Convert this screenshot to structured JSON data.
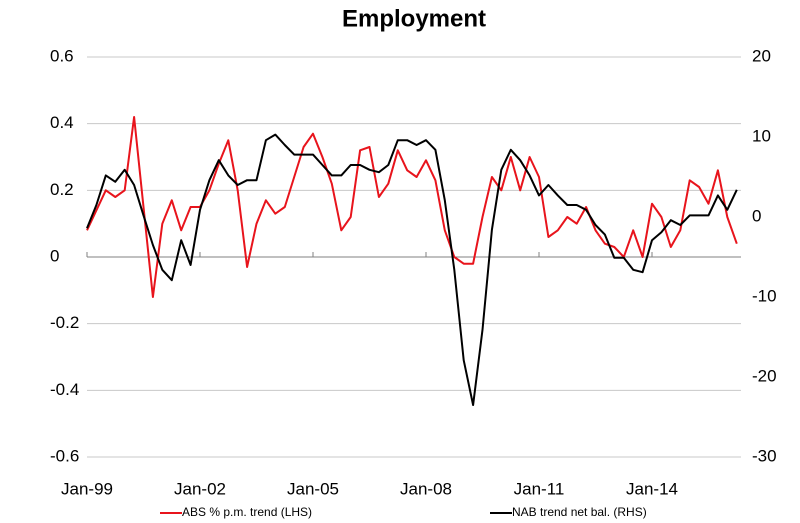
{
  "chart_data": {
    "type": "line",
    "title": "Employment",
    "categories": [
      "Jan-99",
      null,
      null,
      null,
      null,
      null,
      null,
      null,
      null,
      null,
      null,
      null,
      "Jan-02",
      null,
      null,
      null,
      null,
      null,
      null,
      null,
      null,
      null,
      null,
      null,
      "Jan-05",
      null,
      null,
      null,
      null,
      null,
      null,
      null,
      null,
      null,
      null,
      null,
      "Jan-08",
      null,
      null,
      null,
      null,
      null,
      null,
      null,
      null,
      null,
      null,
      null,
      "Jan-11",
      null,
      null,
      null,
      null,
      null,
      null,
      null,
      null,
      null,
      null,
      null,
      "Jan-14",
      null,
      null,
      null,
      null,
      null,
      null,
      null,
      null,
      null
    ],
    "series": [
      {
        "name": "ABS % p.m. trend (LHS)",
        "color": "#e8141c",
        "axis": "y",
        "values": [
          0.08,
          0.14,
          0.2,
          0.18,
          0.2,
          0.42,
          0.15,
          -0.12,
          0.1,
          0.17,
          0.08,
          0.15,
          0.15,
          0.2,
          0.28,
          0.35,
          0.2,
          -0.03,
          0.1,
          0.17,
          0.13,
          0.15,
          0.24,
          0.33,
          0.37,
          0.3,
          0.22,
          0.08,
          0.12,
          0.32,
          0.33,
          0.18,
          0.22,
          0.32,
          0.26,
          0.24,
          0.29,
          0.23,
          0.08,
          0.0,
          -0.02,
          -0.02,
          0.12,
          0.24,
          0.2,
          0.3,
          0.2,
          0.3,
          0.24,
          0.06,
          0.08,
          0.12,
          0.1,
          0.15,
          0.08,
          0.04,
          0.03,
          0.0,
          0.08,
          0.0,
          0.16,
          0.12,
          0.03,
          0.08,
          0.23,
          0.21,
          0.16,
          0.26,
          0.12,
          0.04
        ]
      },
      {
        "name": "NAB trend net bal. (RHS)",
        "color": "#000000",
        "axis": "y2",
        "values": [
          -1.4,
          1.5,
          5.2,
          4.4,
          5.9,
          4,
          0.2,
          -3.5,
          -6.6,
          -7.9,
          -2.9,
          -6,
          0.9,
          4.6,
          7.1,
          5.2,
          4,
          4.6,
          4.6,
          9.6,
          10.3,
          9,
          7.8,
          7.8,
          7.8,
          6.5,
          5.2,
          5.2,
          6.5,
          6.5,
          5.9,
          5.6,
          6.5,
          9.6,
          9.6,
          9,
          9.6,
          8.4,
          2.1,
          -6.6,
          -17.9,
          -23.5,
          -14.1,
          -1.6,
          5.9,
          8.4,
          7.1,
          5.2,
          2.7,
          4,
          2.7,
          1.5,
          1.5,
          0.9,
          -1,
          -2.2,
          -5.1,
          -5.1,
          -6.6,
          -6.9,
          -2.9,
          -1.9,
          -0.4,
          -1,
          0.2,
          0.2,
          0.2,
          2.7,
          0.9,
          3.4
        ]
      }
    ],
    "ylim": [
      -0.6,
      0.6
    ],
    "yticks": [
      0.6,
      0.4,
      0.2,
      0,
      -0.2,
      -0.4,
      -0.6
    ],
    "y2lim": [
      -30,
      20
    ],
    "y2ticks": [
      20,
      10,
      0,
      -10,
      -20,
      -30
    ],
    "grid": true
  }
}
